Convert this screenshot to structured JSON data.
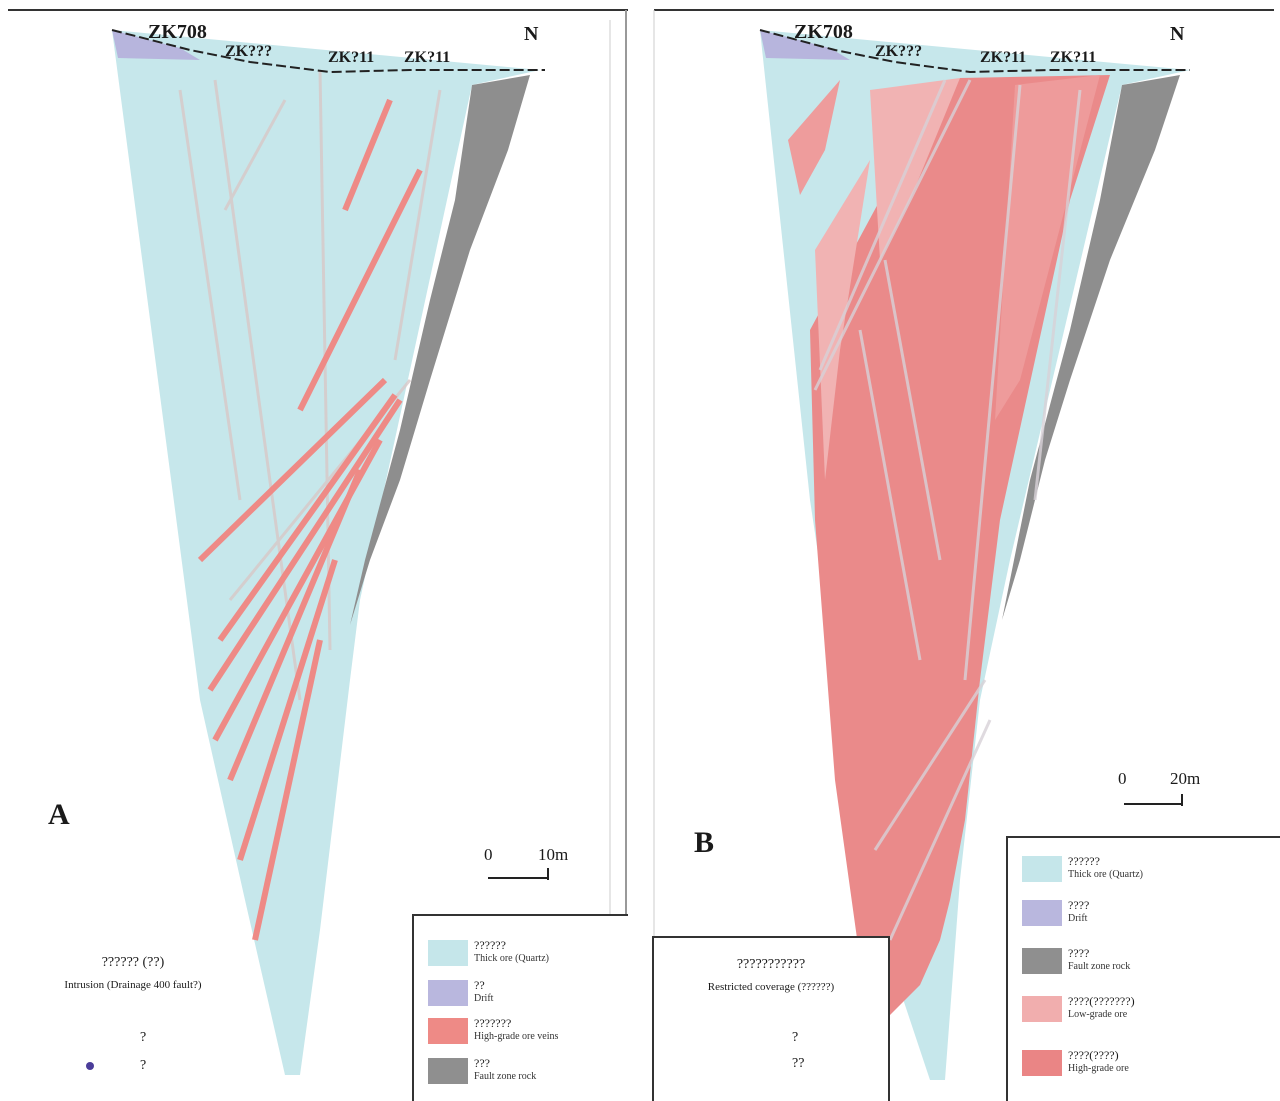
{
  "panels": [
    {
      "letter": "A",
      "drillholes": [
        "ZK708",
        "ZK???",
        "ZK?11",
        "ZK?11"
      ],
      "north_marker": "N",
      "scale": {
        "zero": "0",
        "end": "10m"
      },
      "info": {
        "line1": "?????? (??)",
        "line2": "Intrusion (Drainage 400 fault?)"
      },
      "symbols": [
        "?",
        "?"
      ],
      "legend": [
        {
          "title": "??????",
          "subtitle": "Thick ore (Quartz)",
          "color": "#c5e6ea"
        },
        {
          "title": "??",
          "subtitle": "Drift",
          "color": "#b9b7de"
        },
        {
          "title": "???????",
          "subtitle": "High-grade ore veins",
          "color": "#ee8a86"
        },
        {
          "title": "???",
          "subtitle": "Fault zone rock",
          "color": "#8f8f8f"
        }
      ]
    },
    {
      "letter": "B",
      "drillholes": [
        "ZK708",
        "ZK???",
        "ZK?11",
        "ZK?11"
      ],
      "north_marker": "N",
      "scale": {
        "zero": "0",
        "end": "20m"
      },
      "info": {
        "line1": "???????????",
        "line2": "Restricted coverage (??????)"
      },
      "symbols": [
        "?",
        "??"
      ],
      "legend": [
        {
          "title": "??????",
          "subtitle": "Thick ore (Quartz)",
          "color": "#c5e6ea"
        },
        {
          "title": "????",
          "subtitle": "Drift",
          "color": "#b9b7de"
        },
        {
          "title": "????",
          "subtitle": "Fault zone rock",
          "color": "#8f8f8f"
        },
        {
          "title": "????(???????)",
          "subtitle": "Low-grade ore",
          "color": "#f1aeae"
        },
        {
          "title": "????(????)",
          "subtitle": "High-grade ore",
          "color": "#ea8585"
        }
      ]
    }
  ]
}
